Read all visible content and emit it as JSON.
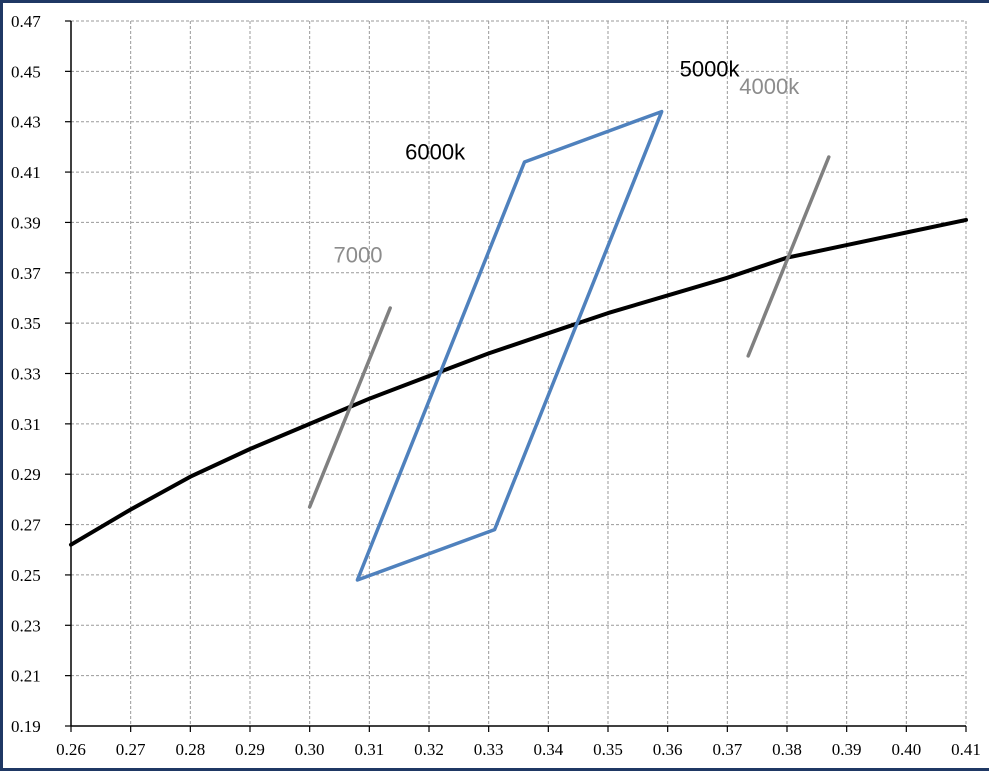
{
  "chart_data": {
    "type": "line",
    "xlim": [
      0.26,
      0.41
    ],
    "ylim": [
      0.19,
      0.47
    ],
    "x_ticks": [
      "0.26",
      "0.27",
      "0.28",
      "0.29",
      "0.30",
      "0.31",
      "0.32",
      "0.33",
      "0.34",
      "0.35",
      "0.36",
      "0.37",
      "0.38",
      "0.39",
      "0.40",
      "0.41"
    ],
    "y_ticks": [
      "0.19",
      "0.21",
      "0.23",
      "0.25",
      "0.27",
      "0.29",
      "0.31",
      "0.33",
      "0.35",
      "0.37",
      "0.39",
      "0.41",
      "0.43",
      "0.45",
      "0.47"
    ],
    "grid": true,
    "series": [
      {
        "color": "#000000",
        "points": [
          [
            0.26,
            0.262
          ],
          [
            0.27,
            0.276
          ],
          [
            0.28,
            0.289
          ],
          [
            0.29,
            0.3
          ],
          [
            0.3,
            0.31
          ],
          [
            0.31,
            0.32
          ],
          [
            0.32,
            0.329
          ],
          [
            0.33,
            0.338
          ],
          [
            0.34,
            0.346
          ],
          [
            0.35,
            0.354
          ],
          [
            0.36,
            0.361
          ],
          [
            0.37,
            0.368
          ],
          [
            0.38,
            0.376
          ],
          [
            0.39,
            0.381
          ],
          [
            0.4,
            0.386
          ],
          [
            0.41,
            0.391
          ]
        ]
      },
      {
        "color": "#4f81bd",
        "closed": true,
        "points": [
          [
            0.308,
            0.248
          ],
          [
            0.336,
            0.414
          ],
          [
            0.359,
            0.434
          ],
          [
            0.331,
            0.268
          ]
        ]
      },
      {
        "color": "#808080",
        "points": [
          [
            0.3,
            0.277
          ],
          [
            0.3135,
            0.356
          ]
        ]
      },
      {
        "color": "#808080",
        "points": [
          [
            0.3735,
            0.337
          ],
          [
            0.387,
            0.416
          ]
        ]
      }
    ],
    "annotations": [
      {
        "text": "5000k",
        "x": 0.362,
        "y": 0.448,
        "color": "#000000"
      },
      {
        "text": "4000k",
        "x": 0.372,
        "y": 0.441,
        "color": "#8c8c8c"
      },
      {
        "text": "6000k",
        "x": 0.316,
        "y": 0.415,
        "color": "#000000"
      },
      {
        "text": "7000",
        "x": 0.304,
        "y": 0.374,
        "color": "#8c8c8c"
      }
    ]
  }
}
